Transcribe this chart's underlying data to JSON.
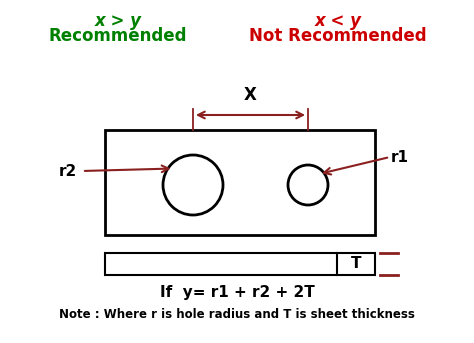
{
  "bg_color": "#ffffff",
  "title_left": "x > y",
  "title_left_sub": "Recommended",
  "title_right": "x < y",
  "title_right_sub": "Not Recommended",
  "title_left_color": "#008000",
  "title_right_color": "#cc0000",
  "formula": "If  y= r1 + r2 + 2T",
  "note": "Note : Where r is hole radius and T is sheet thickness",
  "dim_label": "X",
  "thickness_label": "T",
  "r1_label": "r1",
  "r2_label": "r2",
  "arrow_color": "#8B2020",
  "box_color": "#000000"
}
